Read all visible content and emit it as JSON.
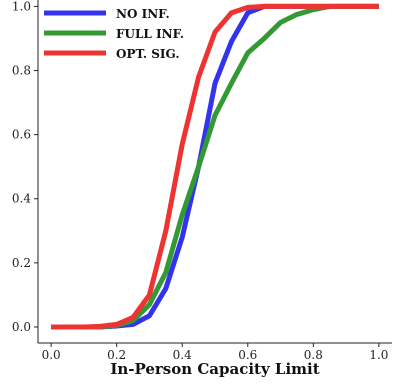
{
  "chart_data": {
    "type": "line",
    "title": "",
    "xlabel": "In-Person Capacity Limit",
    "ylabel": "",
    "xlim": [
      -0.04,
      1.04
    ],
    "ylim": [
      -0.05,
      1.02
    ],
    "xticks": [
      "0.0",
      "0.2",
      "0.4",
      "0.6",
      "0.8",
      "1.0"
    ],
    "yticks": [
      "0.0",
      "0.2",
      "0.4",
      "0.6",
      "0.8",
      "1.0"
    ],
    "grid": false,
    "legend_position": "top-left",
    "x": [
      0.0,
      0.05,
      0.1,
      0.15,
      0.2,
      0.25,
      0.3,
      0.35,
      0.4,
      0.45,
      0.5,
      0.55,
      0.6,
      0.65,
      0.7,
      0.75,
      0.8,
      0.85,
      0.9,
      0.95,
      1.0
    ],
    "series": [
      {
        "name": "NO INF.",
        "color": "#3333ee",
        "values": [
          0.0,
          0.0,
          0.0,
          0.0,
          0.003,
          0.008,
          0.035,
          0.12,
          0.28,
          0.5,
          0.76,
          0.89,
          0.98,
          1.0,
          1.0,
          1.0,
          1.0,
          1.0,
          1.0,
          1.0,
          1.0
        ]
      },
      {
        "name": "FULL INF.",
        "color": "#339933",
        "values": [
          0.0,
          0.0,
          0.0,
          0.0,
          0.005,
          0.02,
          0.07,
          0.17,
          0.35,
          0.5,
          0.66,
          0.76,
          0.855,
          0.9,
          0.95,
          0.975,
          0.99,
          1.0,
          1.0,
          1.0,
          1.0
        ]
      },
      {
        "name": "OPT. SIG.",
        "color": "#ee3333",
        "values": [
          0.0,
          0.0,
          0.0,
          0.002,
          0.008,
          0.03,
          0.1,
          0.3,
          0.57,
          0.78,
          0.92,
          0.98,
          0.997,
          1.0,
          1.0,
          1.0,
          1.0,
          1.0,
          1.0,
          1.0,
          1.0
        ]
      }
    ]
  }
}
